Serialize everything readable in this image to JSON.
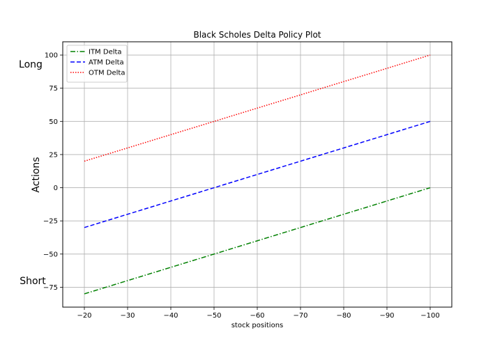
{
  "chart_data": {
    "type": "line",
    "title": "Black Scholes Delta Policy Plot",
    "xlabel": "stock positions",
    "ylabel": "Actions",
    "x_inverted": true,
    "xlim": [
      -15,
      -105
    ],
    "ylim": [
      -90,
      110
    ],
    "xticks": [
      -20,
      -30,
      -40,
      -50,
      -60,
      -70,
      -80,
      -90,
      -100
    ],
    "yticks": [
      100,
      75,
      50,
      25,
      0,
      -25,
      -50,
      -75
    ],
    "xtick_labels": [
      "−20",
      "−30",
      "−40",
      "−50",
      "−60",
      "−70",
      "−80",
      "−90",
      "−100"
    ],
    "ytick_labels": [
      "100",
      "75",
      "50",
      "25",
      "0",
      "−25",
      "−50",
      "−75"
    ],
    "grid": true,
    "legend_position": "top-left",
    "annotations": {
      "top": "Long",
      "bottom": "Short"
    },
    "x": [
      -20,
      -100
    ],
    "series": [
      {
        "name": "ITM Delta",
        "values": [
          -80,
          0
        ],
        "color": "#008000",
        "dash": "dash-dot"
      },
      {
        "name": "ATM Delta",
        "values": [
          -30,
          50
        ],
        "color": "#0000ff",
        "dash": "dashed"
      },
      {
        "name": "OTM Delta",
        "values": [
          20,
          100
        ],
        "color": "#ff0000",
        "dash": "dotted"
      }
    ]
  }
}
